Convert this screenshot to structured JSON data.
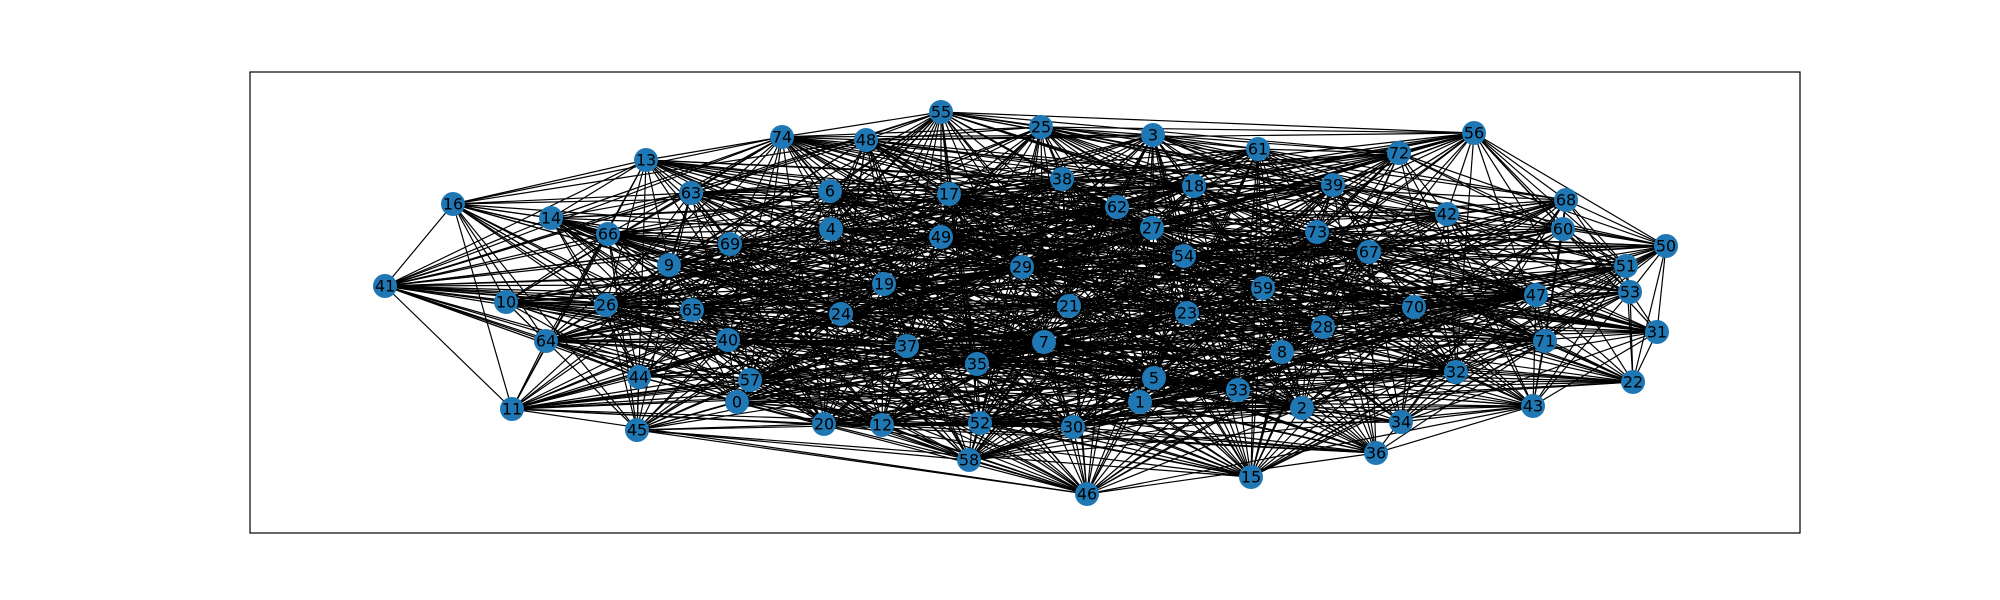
{
  "graph": {
    "node_color": "#1f77b4",
    "edge_color": "#000000",
    "frame_color": "#000000",
    "background": "#ffffff",
    "nodes": [
      {
        "id": "0"
      },
      {
        "id": "1"
      },
      {
        "id": "2"
      },
      {
        "id": "3"
      },
      {
        "id": "4"
      },
      {
        "id": "5"
      },
      {
        "id": "6"
      },
      {
        "id": "7"
      },
      {
        "id": "8"
      },
      {
        "id": "9"
      },
      {
        "id": "10"
      },
      {
        "id": "11"
      },
      {
        "id": "12"
      },
      {
        "id": "13"
      },
      {
        "id": "14"
      },
      {
        "id": "15"
      },
      {
        "id": "16"
      },
      {
        "id": "17"
      },
      {
        "id": "18"
      },
      {
        "id": "19"
      },
      {
        "id": "20"
      },
      {
        "id": "21"
      },
      {
        "id": "22"
      },
      {
        "id": "23"
      },
      {
        "id": "24"
      },
      {
        "id": "25"
      },
      {
        "id": "26"
      },
      {
        "id": "27"
      },
      {
        "id": "28"
      },
      {
        "id": "29"
      },
      {
        "id": "30"
      },
      {
        "id": "31"
      },
      {
        "id": "32"
      },
      {
        "id": "33"
      },
      {
        "id": "34"
      },
      {
        "id": "35"
      },
      {
        "id": "36"
      },
      {
        "id": "37"
      },
      {
        "id": "38"
      },
      {
        "id": "39"
      },
      {
        "id": "40"
      },
      {
        "id": "41"
      },
      {
        "id": "42"
      },
      {
        "id": "43"
      },
      {
        "id": "44"
      },
      {
        "id": "45"
      },
      {
        "id": "46"
      },
      {
        "id": "47"
      },
      {
        "id": "48"
      },
      {
        "id": "49"
      },
      {
        "id": "50"
      },
      {
        "id": "51"
      },
      {
        "id": "52"
      },
      {
        "id": "53"
      },
      {
        "id": "54"
      },
      {
        "id": "55"
      },
      {
        "id": "56"
      },
      {
        "id": "57"
      },
      {
        "id": "58"
      },
      {
        "id": "59"
      },
      {
        "id": "60"
      },
      {
        "id": "61"
      },
      {
        "id": "62"
      },
      {
        "id": "63"
      },
      {
        "id": "64"
      },
      {
        "id": "65"
      },
      {
        "id": "66"
      },
      {
        "id": "67"
      },
      {
        "id": "68"
      },
      {
        "id": "69"
      },
      {
        "id": "70"
      },
      {
        "id": "71"
      },
      {
        "id": "72"
      },
      {
        "id": "73"
      },
      {
        "id": "74"
      }
    ]
  }
}
